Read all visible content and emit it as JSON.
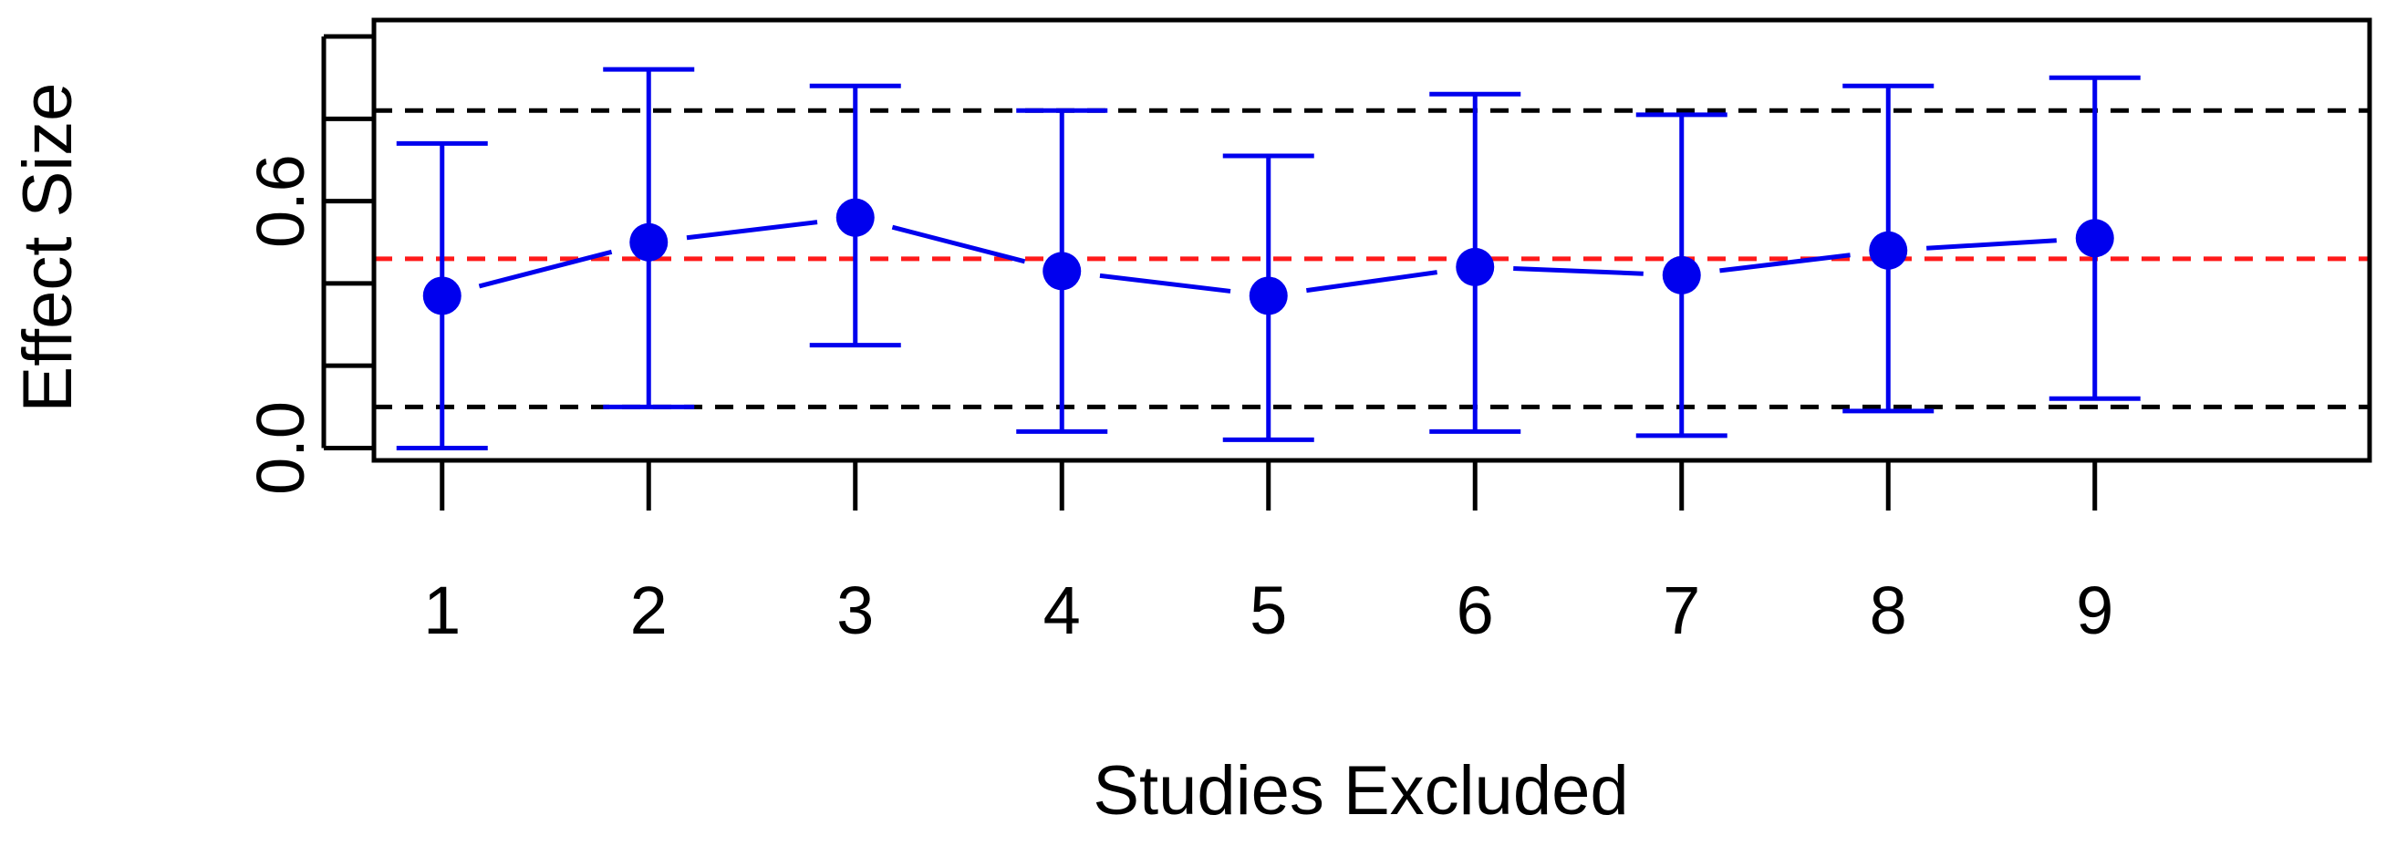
{
  "chart_data": {
    "type": "scatter",
    "title": "",
    "xlabel": "Studies Excluded",
    "ylabel": "Effect Size",
    "x_ticks": [
      "1",
      "2",
      "3",
      "4",
      "5",
      "6",
      "7",
      "8",
      "9"
    ],
    "y_ticks": [
      0.0,
      0.2,
      0.4,
      0.6,
      0.8,
      1.0
    ],
    "y_tick_labels": [
      "0.0",
      "",
      "",
      "0.6",
      "",
      ""
    ],
    "ylim": [
      -0.03,
      1.04
    ],
    "xlim": [
      0.67,
      10.33
    ],
    "grid": false,
    "legend": "none",
    "series": [
      {
        "x": [
          1,
          2,
          3,
          4,
          5,
          6,
          7,
          8,
          9
        ],
        "estimate": [
          0.37,
          0.5,
          0.56,
          0.43,
          0.37,
          0.44,
          0.42,
          0.48,
          0.51
        ],
        "lower": [
          0.0,
          0.1,
          0.25,
          0.04,
          0.02,
          0.04,
          0.03,
          0.09,
          0.12
        ],
        "upper": [
          0.74,
          0.92,
          0.88,
          0.82,
          0.71,
          0.86,
          0.81,
          0.88,
          0.9
        ],
        "color": "#0000ee"
      }
    ],
    "reference_lines": [
      {
        "y": 0.1,
        "style": "dashed",
        "color": "#000000"
      },
      {
        "y": 0.46,
        "style": "dashed",
        "color": "#ff1a1a"
      },
      {
        "y": 0.82,
        "style": "dashed",
        "color": "#000000"
      }
    ]
  }
}
